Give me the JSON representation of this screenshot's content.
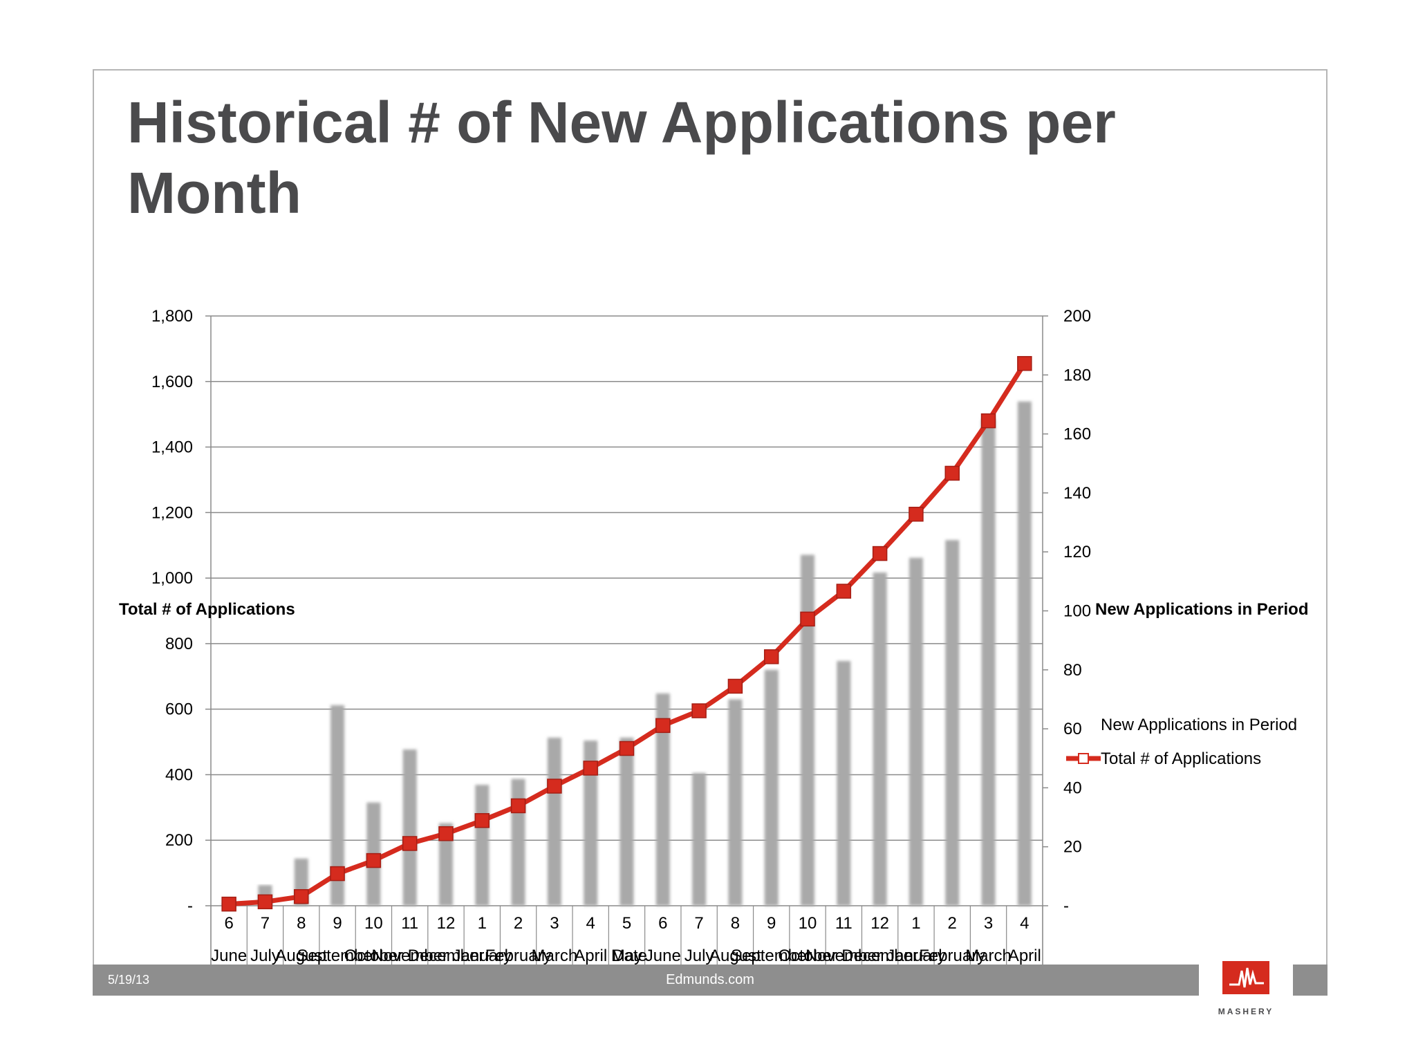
{
  "slide": {
    "title": "Historical # of New Applications per Month",
    "footer_date": "5/19/13",
    "footer_site": "Edmunds.com",
    "logo_text": "MASHERY"
  },
  "colors": {
    "bar": "#a9a9a9",
    "line": "#d52b1e",
    "marker": "#d52b1e",
    "grid": "#8a8a8a",
    "text": "#000000",
    "title": "#4a4a4c",
    "footer": "#8e8e8e"
  },
  "chart_data": {
    "type": "bar",
    "title": "",
    "x_label_row": "Date",
    "categories_num": [
      "6",
      "7",
      "8",
      "9",
      "10",
      "11",
      "12",
      "1",
      "2",
      "3",
      "4",
      "5",
      "6",
      "7",
      "8",
      "9",
      "10",
      "11",
      "12",
      "1",
      "2",
      "3",
      "4"
    ],
    "categories_month": [
      "June",
      "July",
      "August",
      "September",
      "October",
      "November",
      "December",
      "January",
      "February",
      "March",
      "April",
      "May",
      "June",
      "July",
      "August",
      "September",
      "October",
      "November",
      "December",
      "January",
      "February",
      "March",
      "April"
    ],
    "y_left": {
      "label": "Total # of Applications",
      "min": 0,
      "max": 1800,
      "ticks": [
        0,
        200,
        400,
        600,
        800,
        1000,
        1200,
        1400,
        1600,
        1800
      ],
      "tick_labels": [
        "-",
        "200",
        "400",
        "600",
        "800",
        "1,000",
        "1,200",
        "1,400",
        "1,600",
        "1,800"
      ]
    },
    "y_right": {
      "label": "New Applications in Period",
      "min": 0,
      "max": 200,
      "ticks": [
        0,
        20,
        40,
        60,
        80,
        100,
        120,
        140,
        160,
        180,
        200
      ],
      "tick_labels": [
        "-",
        "20",
        "40",
        "60",
        "80",
        "100",
        "120",
        "140",
        "160",
        "180",
        "200"
      ]
    },
    "grid": true,
    "legend_position": "right",
    "series": [
      {
        "name": "New Applications in Period",
        "type": "bar",
        "axis": "right",
        "values": [
          1,
          7,
          16,
          68,
          35,
          53,
          28,
          41,
          43,
          57,
          56,
          57,
          72,
          45,
          70,
          80,
          119,
          83,
          113,
          118,
          124,
          165,
          171
        ]
      },
      {
        "name": "Total # of Applications",
        "type": "line",
        "axis": "left",
        "values": [
          5,
          12,
          28,
          98,
          138,
          190,
          220,
          260,
          305,
          365,
          420,
          480,
          550,
          595,
          670,
          760,
          875,
          960,
          1075,
          1195,
          1320,
          1480,
          1655
        ]
      }
    ]
  }
}
